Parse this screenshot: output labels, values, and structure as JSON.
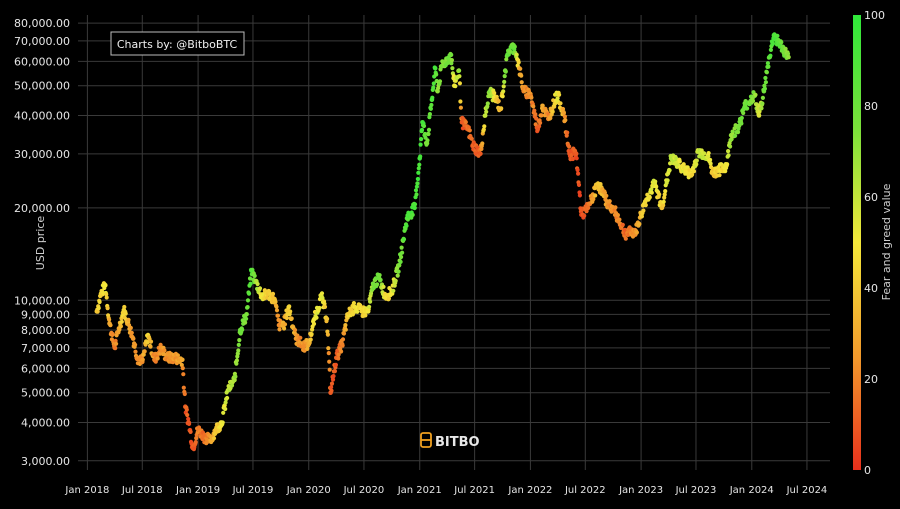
{
  "chart_data": {
    "type": "scatter",
    "title": "",
    "xlabel": "",
    "ylabel": "USD price",
    "y_scale": "log",
    "ylim": [
      2800,
      85000
    ],
    "xlim": [
      "2017-12-01",
      "2024-09-15"
    ],
    "grid": true,
    "credit": "Charts by: @BitboBTC",
    "watermark": "BITBO",
    "y_ticks": [
      {
        "value": 3000,
        "label": "3,000.00"
      },
      {
        "value": 4000,
        "label": "4,000.00"
      },
      {
        "value": 5000,
        "label": "5,000.00"
      },
      {
        "value": 6000,
        "label": "6,000.00"
      },
      {
        "value": 7000,
        "label": "7,000.00"
      },
      {
        "value": 8000,
        "label": "8,000.00"
      },
      {
        "value": 9000,
        "label": "9,000.00"
      },
      {
        "value": 10000,
        "label": "10,000.00"
      },
      {
        "value": 20000,
        "label": "20,000.00"
      },
      {
        "value": 30000,
        "label": "30,000.00"
      },
      {
        "value": 40000,
        "label": "40,000.00"
      },
      {
        "value": 50000,
        "label": "50,000.00"
      },
      {
        "value": 60000,
        "label": "60,000.00"
      },
      {
        "value": 70000,
        "label": "70,000.00"
      },
      {
        "value": 80000,
        "label": "80,000.00"
      }
    ],
    "x_ticks": [
      {
        "value": "2018-01-01",
        "label": "Jan 2018"
      },
      {
        "value": "2018-07-01",
        "label": "Jul 2018"
      },
      {
        "value": "2019-01-01",
        "label": "Jan 2019"
      },
      {
        "value": "2019-07-01",
        "label": "Jul 2019"
      },
      {
        "value": "2020-01-01",
        "label": "Jan 2020"
      },
      {
        "value": "2020-07-01",
        "label": "Jul 2020"
      },
      {
        "value": "2021-01-01",
        "label": "Jan 2021"
      },
      {
        "value": "2021-07-01",
        "label": "Jul 2021"
      },
      {
        "value": "2022-01-01",
        "label": "Jan 2022"
      },
      {
        "value": "2022-07-01",
        "label": "Jul 2022"
      },
      {
        "value": "2023-01-01",
        "label": "Jan 2023"
      },
      {
        "value": "2023-07-01",
        "label": "Jul 2023"
      },
      {
        "value": "2024-01-01",
        "label": "Jan 2024"
      },
      {
        "value": "2024-07-01",
        "label": "Jul 2024"
      }
    ],
    "colorbar": {
      "label": "Fear and greed value",
      "range": [
        0,
        100
      ],
      "ticks": [
        0,
        20,
        40,
        60,
        80,
        100
      ],
      "colors": [
        "#e8301c",
        "#f29a2c",
        "#f4e83a",
        "#7be03a",
        "#2fe83a"
      ]
    },
    "series": [
      {
        "points": [
          {
            "x": "2018-02-01",
            "price": 9200,
            "fg": 40
          },
          {
            "x": "2018-02-15",
            "price": 10500,
            "fg": 45
          },
          {
            "x": "2018-03-01",
            "price": 11200,
            "fg": 50
          },
          {
            "x": "2018-03-15",
            "price": 8400,
            "fg": 30
          },
          {
            "x": "2018-04-01",
            "price": 7000,
            "fg": 18
          },
          {
            "x": "2018-04-15",
            "price": 8100,
            "fg": 30
          },
          {
            "x": "2018-05-01",
            "price": 9300,
            "fg": 45
          },
          {
            "x": "2018-05-15",
            "price": 8500,
            "fg": 35
          },
          {
            "x": "2018-06-01",
            "price": 7500,
            "fg": 25
          },
          {
            "x": "2018-06-15",
            "price": 6500,
            "fg": 22
          },
          {
            "x": "2018-07-01",
            "price": 6300,
            "fg": 22
          },
          {
            "x": "2018-07-20",
            "price": 7700,
            "fg": 45
          },
          {
            "x": "2018-08-10",
            "price": 6400,
            "fg": 20
          },
          {
            "x": "2018-09-01",
            "price": 7000,
            "fg": 25
          },
          {
            "x": "2018-09-20",
            "price": 6500,
            "fg": 22
          },
          {
            "x": "2018-10-15",
            "price": 6500,
            "fg": 25
          },
          {
            "x": "2018-11-10",
            "price": 6400,
            "fg": 30
          },
          {
            "x": "2018-11-20",
            "price": 4500,
            "fg": 10
          },
          {
            "x": "2018-12-01",
            "price": 4000,
            "fg": 10
          },
          {
            "x": "2018-12-15",
            "price": 3300,
            "fg": 8
          },
          {
            "x": "2019-01-01",
            "price": 3800,
            "fg": 20
          },
          {
            "x": "2019-01-20",
            "price": 3600,
            "fg": 15
          },
          {
            "x": "2019-02-10",
            "price": 3500,
            "fg": 25
          },
          {
            "x": "2019-03-01",
            "price": 3800,
            "fg": 40
          },
          {
            "x": "2019-03-20",
            "price": 4000,
            "fg": 50
          },
          {
            "x": "2019-04-10",
            "price": 5100,
            "fg": 60
          },
          {
            "x": "2019-05-01",
            "price": 5500,
            "fg": 65
          },
          {
            "x": "2019-05-20",
            "price": 8000,
            "fg": 80
          },
          {
            "x": "2019-06-10",
            "price": 9000,
            "fg": 75
          },
          {
            "x": "2019-06-26",
            "price": 12500,
            "fg": 90
          },
          {
            "x": "2019-07-10",
            "price": 11500,
            "fg": 70
          },
          {
            "x": "2019-08-01",
            "price": 10300,
            "fg": 50
          },
          {
            "x": "2019-08-20",
            "price": 10500,
            "fg": 40
          },
          {
            "x": "2019-09-10",
            "price": 10100,
            "fg": 38
          },
          {
            "x": "2019-09-25",
            "price": 8300,
            "fg": 22
          },
          {
            "x": "2019-10-10",
            "price": 8300,
            "fg": 30
          },
          {
            "x": "2019-10-27",
            "price": 9500,
            "fg": 45
          },
          {
            "x": "2019-11-20",
            "price": 7500,
            "fg": 25
          },
          {
            "x": "2019-12-15",
            "price": 7100,
            "fg": 22
          },
          {
            "x": "2020-01-01",
            "price": 7200,
            "fg": 30
          },
          {
            "x": "2020-01-20",
            "price": 8700,
            "fg": 50
          },
          {
            "x": "2020-02-12",
            "price": 10300,
            "fg": 55
          },
          {
            "x": "2020-03-01",
            "price": 8700,
            "fg": 38
          },
          {
            "x": "2020-03-13",
            "price": 5000,
            "fg": 10
          },
          {
            "x": "2020-04-01",
            "price": 6500,
            "fg": 12
          },
          {
            "x": "2020-04-20",
            "price": 7200,
            "fg": 20
          },
          {
            "x": "2020-05-10",
            "price": 9000,
            "fg": 42
          },
          {
            "x": "2020-06-01",
            "price": 9500,
            "fg": 48
          },
          {
            "x": "2020-06-25",
            "price": 9200,
            "fg": 45
          },
          {
            "x": "2020-07-15",
            "price": 9200,
            "fg": 50
          },
          {
            "x": "2020-08-01",
            "price": 11300,
            "fg": 75
          },
          {
            "x": "2020-08-20",
            "price": 11800,
            "fg": 80
          },
          {
            "x": "2020-09-10",
            "price": 10300,
            "fg": 45
          },
          {
            "x": "2020-10-01",
            "price": 10700,
            "fg": 50
          },
          {
            "x": "2020-10-25",
            "price": 13000,
            "fg": 75
          },
          {
            "x": "2020-11-20",
            "price": 18500,
            "fg": 90
          },
          {
            "x": "2020-12-15",
            "price": 20000,
            "fg": 92
          },
          {
            "x": "2021-01-01",
            "price": 29000,
            "fg": 93
          },
          {
            "x": "2021-01-10",
            "price": 38000,
            "fg": 93
          },
          {
            "x": "2021-01-25",
            "price": 32500,
            "fg": 75
          },
          {
            "x": "2021-02-10",
            "price": 45000,
            "fg": 90
          },
          {
            "x": "2021-02-21",
            "price": 57000,
            "fg": 92
          },
          {
            "x": "2021-03-01",
            "price": 48000,
            "fg": 70
          },
          {
            "x": "2021-03-15",
            "price": 58000,
            "fg": 75
          },
          {
            "x": "2021-04-14",
            "price": 63000,
            "fg": 78
          },
          {
            "x": "2021-04-25",
            "price": 50000,
            "fg": 50
          },
          {
            "x": "2021-05-10",
            "price": 56000,
            "fg": 70
          },
          {
            "x": "2021-05-20",
            "price": 38000,
            "fg": 10
          },
          {
            "x": "2021-06-10",
            "price": 36000,
            "fg": 15
          },
          {
            "x": "2021-06-25",
            "price": 32000,
            "fg": 12
          },
          {
            "x": "2021-07-20",
            "price": 30000,
            "fg": 10
          },
          {
            "x": "2021-08-05",
            "price": 40000,
            "fg": 60
          },
          {
            "x": "2021-08-20",
            "price": 48000,
            "fg": 75
          },
          {
            "x": "2021-09-10",
            "price": 45000,
            "fg": 40
          },
          {
            "x": "2021-09-25",
            "price": 42000,
            "fg": 30
          },
          {
            "x": "2021-10-10",
            "price": 56000,
            "fg": 75
          },
          {
            "x": "2021-10-20",
            "price": 65000,
            "fg": 80
          },
          {
            "x": "2021-11-10",
            "price": 67000,
            "fg": 80
          },
          {
            "x": "2021-11-25",
            "price": 57000,
            "fg": 35
          },
          {
            "x": "2021-12-10",
            "price": 48000,
            "fg": 20
          },
          {
            "x": "2022-01-01",
            "price": 47000,
            "fg": 25
          },
          {
            "x": "2022-01-25",
            "price": 36000,
            "fg": 10
          },
          {
            "x": "2022-02-10",
            "price": 43000,
            "fg": 30
          },
          {
            "x": "2022-03-01",
            "price": 39000,
            "fg": 20
          },
          {
            "x": "2022-03-30",
            "price": 47000,
            "fg": 55
          },
          {
            "x": "2022-04-20",
            "price": 41000,
            "fg": 30
          },
          {
            "x": "2022-05-10",
            "price": 30000,
            "fg": 10
          },
          {
            "x": "2022-06-01",
            "price": 30000,
            "fg": 10
          },
          {
            "x": "2022-06-18",
            "price": 19000,
            "fg": 6
          },
          {
            "x": "2022-07-10",
            "price": 20000,
            "fg": 15
          },
          {
            "x": "2022-08-12",
            "price": 24000,
            "fg": 40
          },
          {
            "x": "2022-09-10",
            "price": 21000,
            "fg": 25
          },
          {
            "x": "2022-10-10",
            "price": 19200,
            "fg": 22
          },
          {
            "x": "2022-11-10",
            "price": 16500,
            "fg": 12
          },
          {
            "x": "2022-12-15",
            "price": 16800,
            "fg": 25
          },
          {
            "x": "2023-01-15",
            "price": 21000,
            "fg": 45
          },
          {
            "x": "2023-02-15",
            "price": 24000,
            "fg": 55
          },
          {
            "x": "2023-03-10",
            "price": 20000,
            "fg": 40
          },
          {
            "x": "2023-04-10",
            "price": 29000,
            "fg": 62
          },
          {
            "x": "2023-05-20",
            "price": 27000,
            "fg": 50
          },
          {
            "x": "2023-06-15",
            "price": 25500,
            "fg": 45
          },
          {
            "x": "2023-07-10",
            "price": 30500,
            "fg": 60
          },
          {
            "x": "2023-08-10",
            "price": 29500,
            "fg": 55
          },
          {
            "x": "2023-08-25",
            "price": 26000,
            "fg": 40
          },
          {
            "x": "2023-09-15",
            "price": 26500,
            "fg": 45
          },
          {
            "x": "2023-10-10",
            "price": 27500,
            "fg": 50
          },
          {
            "x": "2023-10-25",
            "price": 34500,
            "fg": 70
          },
          {
            "x": "2023-11-20",
            "price": 37000,
            "fg": 75
          },
          {
            "x": "2023-12-10",
            "price": 43000,
            "fg": 80
          },
          {
            "x": "2024-01-10",
            "price": 46500,
            "fg": 75
          },
          {
            "x": "2024-01-25",
            "price": 40000,
            "fg": 55
          },
          {
            "x": "2024-02-10",
            "price": 48000,
            "fg": 78
          },
          {
            "x": "2024-02-28",
            "price": 62000,
            "fg": 85
          },
          {
            "x": "2024-03-14",
            "price": 73000,
            "fg": 90
          },
          {
            "x": "2024-04-01",
            "price": 69000,
            "fg": 85
          },
          {
            "x": "2024-04-20",
            "price": 64000,
            "fg": 75
          },
          {
            "x": "2024-05-01",
            "price": 62000,
            "fg": 70
          }
        ]
      }
    ]
  }
}
